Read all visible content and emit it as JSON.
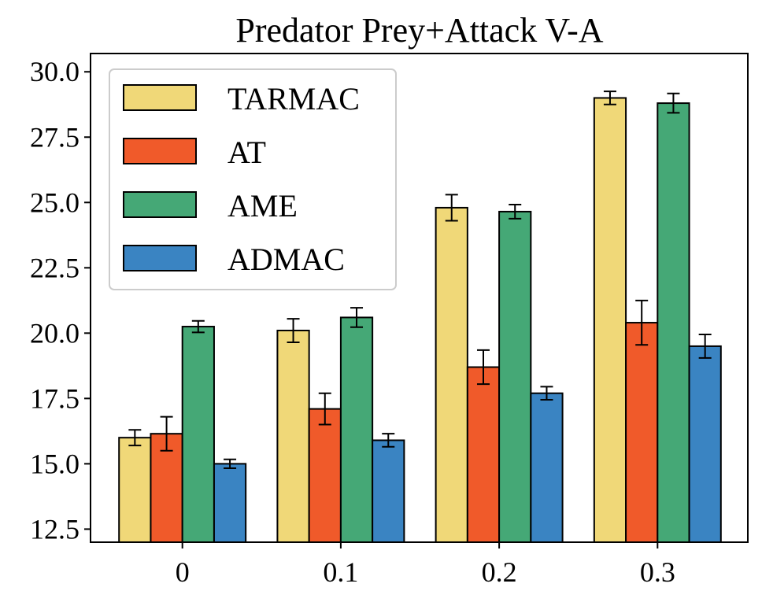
{
  "chart_data": {
    "type": "bar",
    "title": "Predator Prey+Attack V-A",
    "xlabel": "",
    "ylabel": "",
    "categories": [
      "0",
      "0.1",
      "0.2",
      "0.3"
    ],
    "ylim": [
      12.0,
      30.7
    ],
    "yticks": [
      "12.5",
      "15.0",
      "17.5",
      "20.0",
      "22.5",
      "25.0",
      "27.5",
      "30.0"
    ],
    "grid": false,
    "legend_position": "top-left",
    "series": [
      {
        "name": "TARMAC",
        "color": "#f0d878",
        "values": [
          16.0,
          20.1,
          24.8,
          29.0
        ],
        "errors": [
          0.3,
          0.45,
          0.5,
          0.25
        ]
      },
      {
        "name": "AT",
        "color": "#f05a2a",
        "values": [
          16.15,
          17.1,
          18.7,
          20.4
        ],
        "errors": [
          0.65,
          0.6,
          0.65,
          0.85
        ]
      },
      {
        "name": "AME",
        "color": "#45a876",
        "values": [
          20.25,
          20.6,
          24.65,
          28.8
        ],
        "errors": [
          0.22,
          0.37,
          0.27,
          0.37
        ]
      },
      {
        "name": "ADMAC",
        "color": "#3a84c2",
        "values": [
          15.0,
          15.9,
          17.7,
          19.5
        ],
        "errors": [
          0.17,
          0.25,
          0.25,
          0.45
        ]
      }
    ]
  }
}
